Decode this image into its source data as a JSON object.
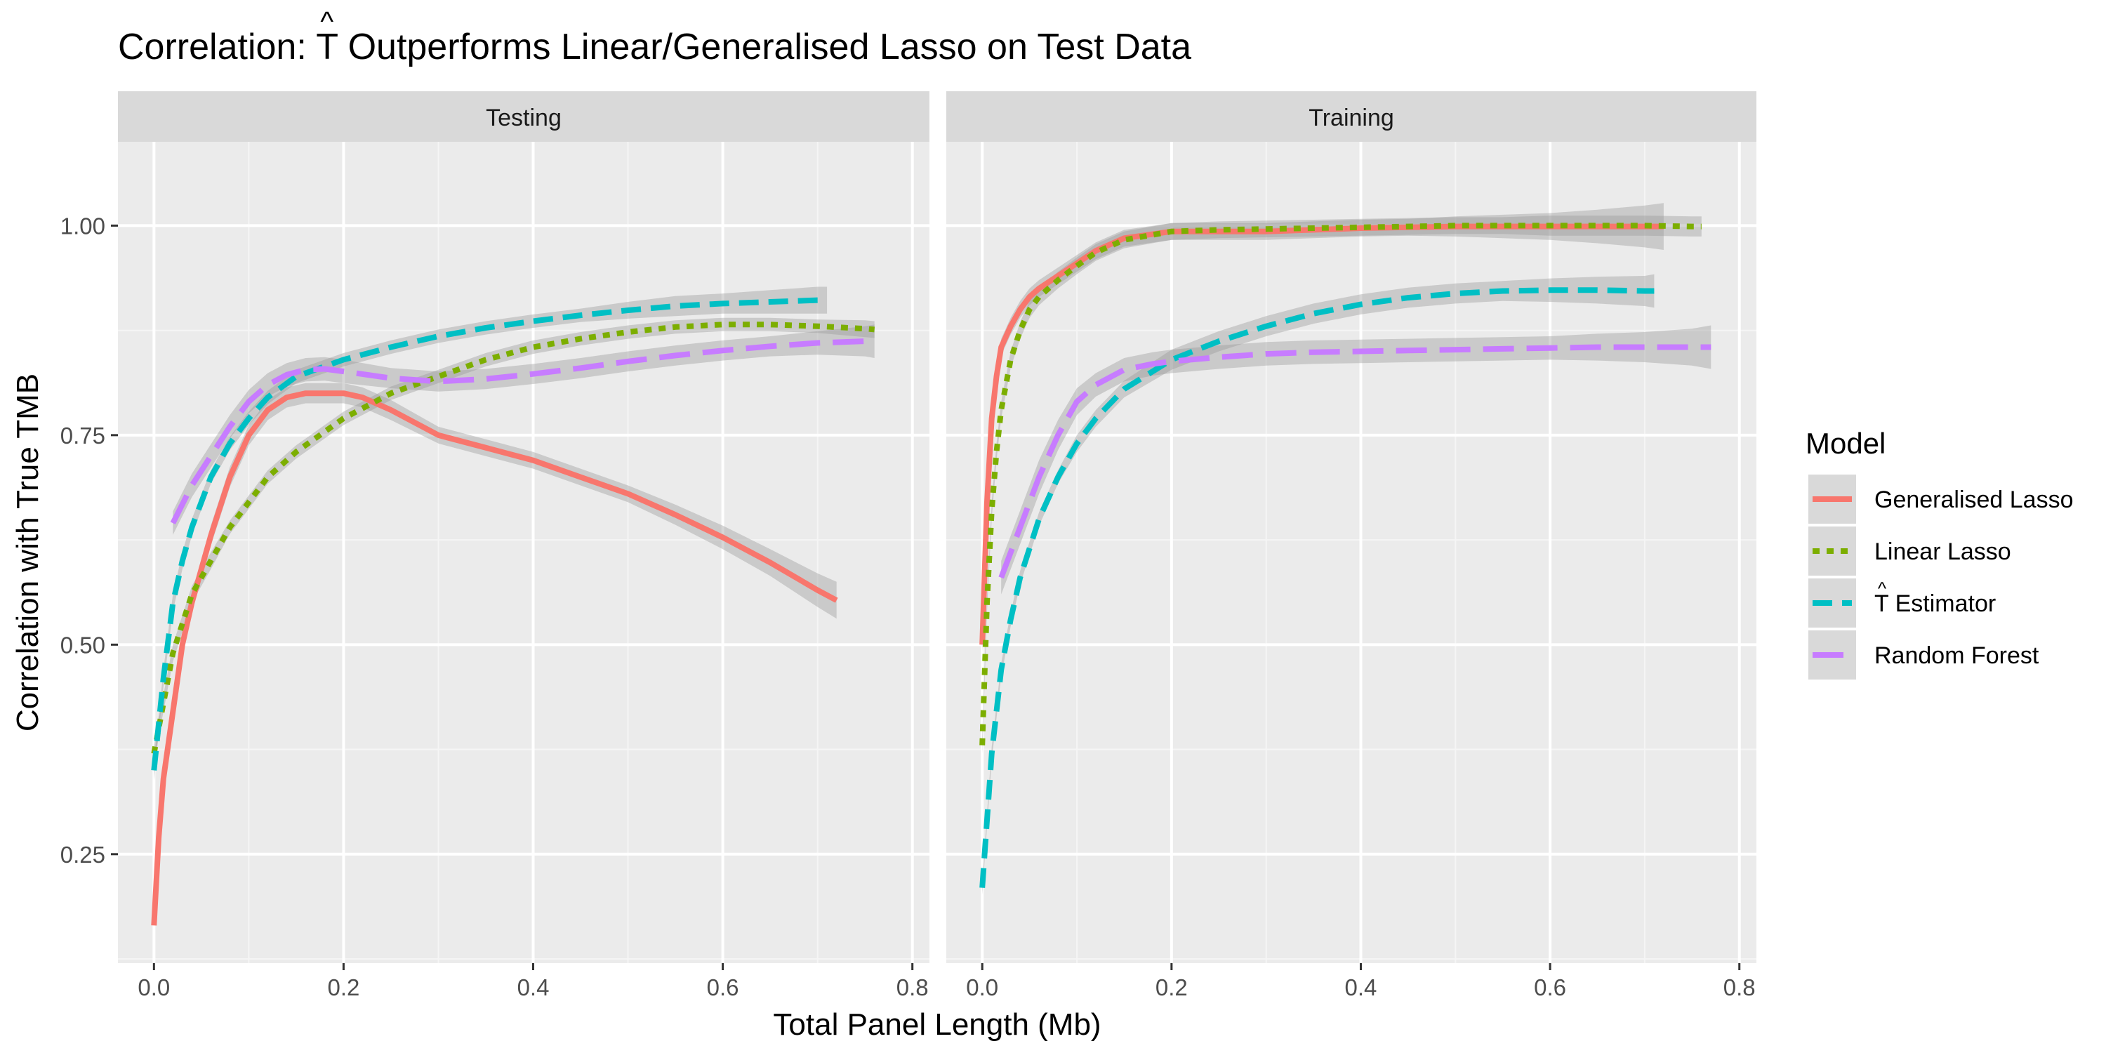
{
  "chart_data": {
    "type": "line",
    "title": {
      "prefix": "Correlation: ",
      "symbol": "T",
      "suffix": " Outperforms Linear/Generalised Lasso on Test Data"
    },
    "xlabel": "Total Panel Length (Mb)",
    "ylabel": "Correlation with True TMB",
    "xlim": [
      -0.038,
      0.818
    ],
    "ylim": [
      0.12,
      1.1
    ],
    "x_ticks": [
      0.0,
      0.2,
      0.4,
      0.6,
      0.8
    ],
    "x_tick_labels": [
      "0.0",
      "0.2",
      "0.4",
      "0.6",
      "0.8"
    ],
    "y_ticks": [
      0.25,
      0.5,
      0.75,
      1.0
    ],
    "y_tick_labels": [
      "0.25",
      "0.50",
      "0.75",
      "1.00"
    ],
    "grid": true,
    "legend": {
      "title": "Model",
      "placement": "right",
      "entries": [
        {
          "label": "Generalised Lasso",
          "series": "Generalised Lasso"
        },
        {
          "label": "Linear Lasso",
          "series": "Linear Lasso"
        },
        {
          "label": "Estimator",
          "series": "T Estimator",
          "hat_symbol": "T"
        },
        {
          "label": "Random Forest",
          "series": "Random Forest"
        }
      ]
    },
    "series_styles": {
      "Generalised Lasso": {
        "color": "#F8766D",
        "dash": "solid"
      },
      "Linear Lasso": {
        "color": "#7CAE00",
        "dash": "dotted"
      },
      "T Estimator": {
        "color": "#00BFC4",
        "dash": "dashed"
      },
      "Random Forest": {
        "color": "#C77CFF",
        "dash": "longdash"
      }
    },
    "band_color": "#999999",
    "panels": [
      {
        "strip": "Testing",
        "series": [
          {
            "name": "Generalised Lasso",
            "x": [
              0.0,
              0.005,
              0.01,
              0.02,
              0.03,
              0.04,
              0.06,
              0.08,
              0.1,
              0.12,
              0.14,
              0.16,
              0.18,
              0.2,
              0.22,
              0.25,
              0.3,
              0.35,
              0.4,
              0.45,
              0.5,
              0.55,
              0.6,
              0.65,
              0.7,
              0.72
            ],
            "y": [
              0.165,
              0.27,
              0.34,
              0.42,
              0.5,
              0.55,
              0.63,
              0.7,
              0.75,
              0.78,
              0.795,
              0.8,
              0.8,
              0.8,
              0.795,
              0.78,
              0.75,
              0.735,
              0.72,
              0.7,
              0.68,
              0.655,
              0.628,
              0.598,
              0.565,
              0.553
            ],
            "band": [
              0.0,
              0.0,
              0.0,
              0.01,
              0.012,
              0.012,
              0.012,
              0.012,
              0.012,
              0.012,
              0.012,
              0.012,
              0.012,
              0.012,
              0.012,
              0.012,
              0.01,
              0.01,
              0.01,
              0.01,
              0.01,
              0.012,
              0.014,
              0.016,
              0.02,
              0.022
            ]
          },
          {
            "name": "Linear Lasso",
            "x": [
              0.0,
              0.01,
              0.02,
              0.04,
              0.06,
              0.08,
              0.1,
              0.12,
              0.15,
              0.2,
              0.25,
              0.3,
              0.35,
              0.4,
              0.45,
              0.5,
              0.55,
              0.6,
              0.65,
              0.7,
              0.75,
              0.76
            ],
            "y": [
              0.37,
              0.43,
              0.49,
              0.56,
              0.6,
              0.64,
              0.67,
              0.7,
              0.73,
              0.77,
              0.8,
              0.82,
              0.84,
              0.855,
              0.865,
              0.873,
              0.879,
              0.882,
              0.882,
              0.88,
              0.877,
              0.876
            ],
            "band": [
              0.01,
              0.01,
              0.01,
              0.01,
              0.01,
              0.008,
              0.008,
              0.008,
              0.008,
              0.008,
              0.008,
              0.008,
              0.008,
              0.008,
              0.008,
              0.008,
              0.008,
              0.008,
              0.008,
              0.008,
              0.01,
              0.01
            ]
          },
          {
            "name": "T Estimator",
            "x": [
              0.0,
              0.01,
              0.02,
              0.03,
              0.04,
              0.06,
              0.08,
              0.1,
              0.12,
              0.15,
              0.2,
              0.25,
              0.3,
              0.35,
              0.4,
              0.45,
              0.5,
              0.55,
              0.6,
              0.65,
              0.7,
              0.71
            ],
            "y": [
              0.35,
              0.46,
              0.55,
              0.6,
              0.64,
              0.7,
              0.74,
              0.77,
              0.795,
              0.82,
              0.84,
              0.855,
              0.868,
              0.878,
              0.886,
              0.893,
              0.899,
              0.904,
              0.907,
              0.909,
              0.911,
              0.911
            ],
            "band": [
              0.012,
              0.01,
              0.01,
              0.01,
              0.01,
              0.008,
              0.008,
              0.008,
              0.008,
              0.008,
              0.008,
              0.008,
              0.008,
              0.008,
              0.008,
              0.008,
              0.01,
              0.012,
              0.012,
              0.014,
              0.016,
              0.016
            ]
          },
          {
            "name": "Random Forest",
            "x": [
              0.02,
              0.04,
              0.06,
              0.08,
              0.1,
              0.12,
              0.14,
              0.16,
              0.18,
              0.2,
              0.25,
              0.3,
              0.35,
              0.4,
              0.45,
              0.5,
              0.55,
              0.6,
              0.65,
              0.7,
              0.75,
              0.76
            ],
            "y": [
              0.645,
              0.69,
              0.725,
              0.76,
              0.79,
              0.81,
              0.822,
              0.828,
              0.829,
              0.826,
              0.818,
              0.814,
              0.817,
              0.823,
              0.83,
              0.838,
              0.845,
              0.851,
              0.856,
              0.86,
              0.862,
              0.862
            ],
            "band": [
              0.014,
              0.014,
              0.014,
              0.014,
              0.014,
              0.014,
              0.014,
              0.014,
              0.014,
              0.014,
              0.012,
              0.012,
              0.012,
              0.012,
              0.012,
              0.012,
              0.012,
              0.012,
              0.012,
              0.014,
              0.018,
              0.02
            ]
          }
        ]
      },
      {
        "strip": "Training",
        "series": [
          {
            "name": "Generalised Lasso",
            "x": [
              0.0,
              0.005,
              0.01,
              0.015,
              0.02,
              0.03,
              0.04,
              0.05,
              0.06,
              0.08,
              0.1,
              0.12,
              0.15,
              0.2,
              0.25,
              0.3,
              0.35,
              0.4,
              0.45,
              0.5,
              0.55,
              0.6,
              0.65,
              0.7,
              0.72
            ],
            "y": [
              0.5,
              0.67,
              0.77,
              0.82,
              0.855,
              0.88,
              0.9,
              0.915,
              0.925,
              0.94,
              0.955,
              0.97,
              0.985,
              0.993,
              0.993,
              0.993,
              0.995,
              0.997,
              0.998,
              0.999,
              0.999,
              0.999,
              0.999,
              0.999,
              0.999
            ],
            "band": [
              0.01,
              0.01,
              0.01,
              0.01,
              0.01,
              0.01,
              0.01,
              0.01,
              0.01,
              0.01,
              0.01,
              0.01,
              0.01,
              0.01,
              0.01,
              0.01,
              0.01,
              0.01,
              0.01,
              0.012,
              0.014,
              0.016,
              0.02,
              0.025,
              0.028
            ]
          },
          {
            "name": "Linear Lasso",
            "x": [
              0.0,
              0.005,
              0.01,
              0.015,
              0.02,
              0.03,
              0.04,
              0.05,
              0.06,
              0.08,
              0.1,
              0.12,
              0.15,
              0.2,
              0.25,
              0.3,
              0.35,
              0.4,
              0.45,
              0.5,
              0.55,
              0.6,
              0.65,
              0.7,
              0.75,
              0.76
            ],
            "y": [
              0.38,
              0.55,
              0.66,
              0.73,
              0.78,
              0.84,
              0.875,
              0.9,
              0.915,
              0.935,
              0.952,
              0.968,
              0.983,
              0.993,
              0.995,
              0.996,
              0.997,
              0.998,
              0.999,
              1.0,
              1.0,
              1.0,
              1.0,
              1.0,
              0.999,
              0.999
            ],
            "band": [
              0.01,
              0.01,
              0.01,
              0.01,
              0.01,
              0.01,
              0.01,
              0.01,
              0.01,
              0.01,
              0.01,
              0.01,
              0.01,
              0.01,
              0.01,
              0.01,
              0.01,
              0.01,
              0.01,
              0.01,
              0.01,
              0.012,
              0.012,
              0.012,
              0.012,
              0.012
            ]
          },
          {
            "name": "T Estimator",
            "x": [
              0.0,
              0.01,
              0.02,
              0.03,
              0.04,
              0.06,
              0.08,
              0.1,
              0.12,
              0.15,
              0.2,
              0.25,
              0.3,
              0.35,
              0.4,
              0.45,
              0.5,
              0.55,
              0.6,
              0.65,
              0.7,
              0.71
            ],
            "y": [
              0.21,
              0.37,
              0.47,
              0.53,
              0.58,
              0.65,
              0.7,
              0.74,
              0.77,
              0.805,
              0.84,
              0.862,
              0.88,
              0.895,
              0.906,
              0.914,
              0.919,
              0.922,
              0.923,
              0.923,
              0.922,
              0.922
            ],
            "band": [
              0.008,
              0.008,
              0.008,
              0.008,
              0.008,
              0.008,
              0.008,
              0.01,
              0.01,
              0.01,
              0.012,
              0.012,
              0.012,
              0.012,
              0.012,
              0.012,
              0.012,
              0.012,
              0.014,
              0.016,
              0.018,
              0.02
            ]
          },
          {
            "name": "Random Forest",
            "x": [
              0.02,
              0.04,
              0.06,
              0.08,
              0.1,
              0.12,
              0.15,
              0.18,
              0.2,
              0.25,
              0.3,
              0.35,
              0.4,
              0.45,
              0.5,
              0.55,
              0.6,
              0.65,
              0.7,
              0.75,
              0.77
            ],
            "y": [
              0.58,
              0.64,
              0.7,
              0.75,
              0.79,
              0.81,
              0.828,
              0.835,
              0.838,
              0.843,
              0.847,
              0.849,
              0.85,
              0.851,
              0.852,
              0.853,
              0.854,
              0.855,
              0.855,
              0.855,
              0.855
            ],
            "band": [
              0.02,
              0.02,
              0.02,
              0.018,
              0.016,
              0.014,
              0.014,
              0.014,
              0.014,
              0.014,
              0.014,
              0.014,
              0.014,
              0.014,
              0.014,
              0.014,
              0.014,
              0.016,
              0.018,
              0.022,
              0.026
            ]
          }
        ]
      }
    ]
  }
}
